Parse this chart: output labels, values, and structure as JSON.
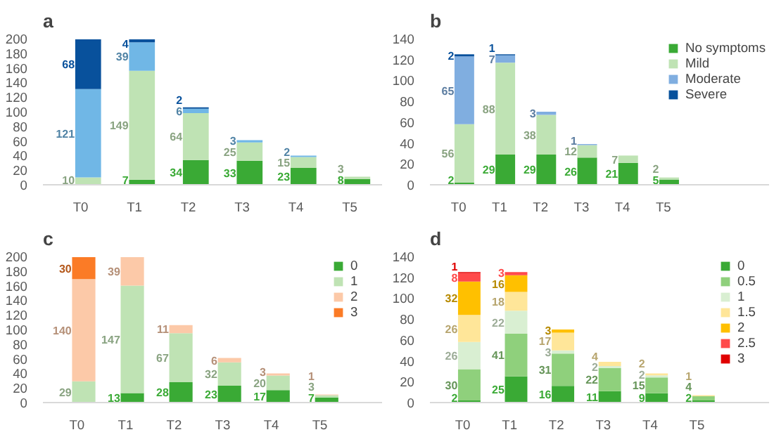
{
  "chart_data": [
    {
      "type": "bar",
      "title": "a",
      "stacked": true,
      "data_labels": true,
      "categories": [
        "T0",
        "T1",
        "T2",
        "T3",
        "T4",
        "T5"
      ],
      "ylim": [
        0,
        200
      ],
      "yticks": [
        0,
        20,
        40,
        60,
        80,
        100,
        120,
        140,
        160,
        180,
        200
      ],
      "series": [
        {
          "color": "#3aaa35",
          "values": [
            null,
            7,
            34,
            33,
            23,
            8
          ]
        },
        {
          "color": "#bfe3b4",
          "values": [
            10,
            149,
            64,
            25,
            15,
            3
          ]
        },
        {
          "color": "#70b7e6",
          "values": [
            121,
            39,
            6,
            3,
            2,
            null
          ]
        },
        {
          "color": "#08519c",
          "values": [
            68,
            4,
            2,
            null,
            null,
            null
          ]
        }
      ]
    },
    {
      "type": "bar",
      "title": "b",
      "stacked": true,
      "data_labels": true,
      "legend": "top right",
      "categories": [
        "T0",
        "T1",
        "T2",
        "T3",
        "T4",
        "T5"
      ],
      "ylim": [
        0,
        140
      ],
      "yticks": [
        0,
        20,
        40,
        60,
        80,
        100,
        120,
        140
      ],
      "series": [
        {
          "name": "No symptoms",
          "color": "#3aaa35",
          "values": [
            2,
            29,
            29,
            26,
            21,
            5
          ]
        },
        {
          "name": "Mild",
          "color": "#bfe3b4",
          "values": [
            56,
            88,
            38,
            12,
            7,
            2
          ]
        },
        {
          "name": "Moderate",
          "color": "#80aee0",
          "values": [
            65,
            7,
            3,
            1,
            null,
            null
          ]
        },
        {
          "name": "Severe",
          "color": "#08519c",
          "values": [
            2,
            1,
            null,
            null,
            null,
            null
          ]
        }
      ]
    },
    {
      "type": "bar",
      "title": "c",
      "stacked": true,
      "data_labels": true,
      "legend": "top right",
      "categories": [
        "T0",
        "T1",
        "T2",
        "T3",
        "T4",
        "T5"
      ],
      "ylim": [
        0,
        200
      ],
      "yticks": [
        0,
        20,
        40,
        60,
        80,
        100,
        120,
        140,
        160,
        180,
        200
      ],
      "series": [
        {
          "name": "0",
          "color": "#3aaa35",
          "values": [
            null,
            13,
            28,
            23,
            17,
            7
          ]
        },
        {
          "name": "1",
          "color": "#bfe3b4",
          "values": [
            29,
            147,
            67,
            32,
            20,
            3
          ]
        },
        {
          "name": "2",
          "color": "#fcc9a8",
          "values": [
            140,
            39,
            11,
            6,
            3,
            1
          ]
        },
        {
          "name": "3",
          "color": "#fb7b26",
          "values": [
            30,
            null,
            null,
            null,
            null,
            null
          ]
        }
      ]
    },
    {
      "type": "bar",
      "title": "d",
      "stacked": true,
      "data_labels": true,
      "legend": "top right",
      "categories": [
        "T0",
        "T1",
        "T2",
        "T3",
        "T4",
        "T5"
      ],
      "ylim": [
        0,
        140
      ],
      "yticks": [
        0,
        20,
        40,
        60,
        80,
        100,
        120,
        140
      ],
      "series": [
        {
          "name": "0",
          "color": "#3aaa35",
          "values": [
            2,
            25,
            16,
            11,
            9,
            2
          ]
        },
        {
          "name": "0.5",
          "color": "#8fd07c",
          "values": [
            30,
            41,
            31,
            22,
            15,
            4
          ]
        },
        {
          "name": "1",
          "color": "#d9efd2",
          "values": [
            26,
            22,
            3,
            2,
            2,
            null
          ]
        },
        {
          "name": "1.5",
          "color": "#ffe699",
          "values": [
            26,
            18,
            17,
            4,
            2,
            1
          ]
        },
        {
          "name": "2",
          "color": "#ffc000",
          "values": [
            32,
            16,
            3,
            null,
            null,
            null
          ]
        },
        {
          "name": "2.5",
          "color": "#ff4a4a",
          "values": [
            8,
            3,
            null,
            null,
            null,
            null
          ]
        },
        {
          "name": "3",
          "color": "#e00000",
          "values": [
            1,
            null,
            null,
            null,
            null,
            null
          ]
        }
      ]
    }
  ]
}
